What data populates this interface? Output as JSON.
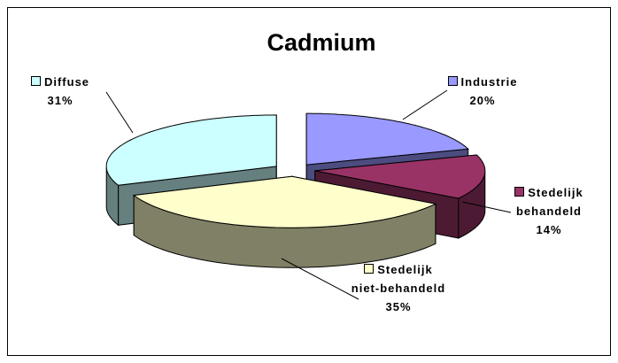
{
  "chart_data": {
    "type": "pie3d",
    "title": "Cadmium",
    "categories": [
      "Industrie",
      "Stedelijk behandeld",
      "Stedelijk niet-behandeld",
      "Diffuse"
    ],
    "values": [
      20,
      14,
      35,
      31
    ],
    "value_labels": [
      "20%",
      "14%",
      "35%",
      "31%"
    ],
    "colors": [
      "#9999ff",
      "#993366",
      "#ffffcc",
      "#ccffff"
    ],
    "side_colors": [
      "#4c4c80",
      "#4d1a33",
      "#808066",
      "#668080"
    ]
  }
}
